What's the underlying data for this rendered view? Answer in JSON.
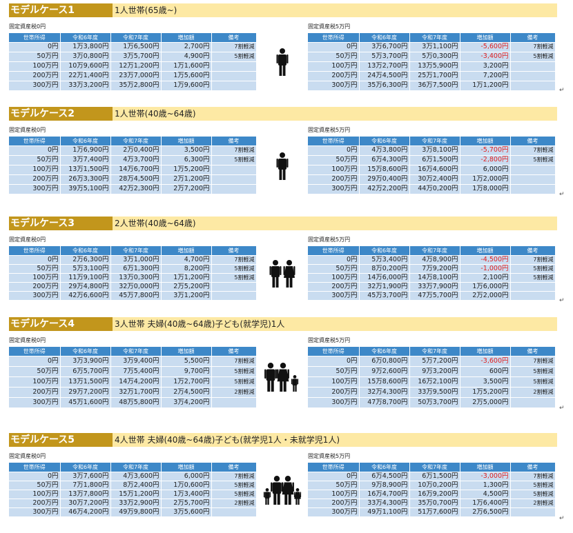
{
  "columns": [
    "世帯所得",
    "令和6年度",
    "令和7年度",
    "増加額",
    "備考"
  ],
  "tax0_label": "固定資産税0円",
  "tax5_label": "固定資産税5万円",
  "return_mark": "↵",
  "colors": {
    "header_gold": "#c2961c",
    "header_light": "#fde9a4",
    "table_header": "#3d88c8",
    "cell": "#c9dcf0",
    "negative": "#e02020"
  },
  "cases": [
    {
      "title": "モデルケース1",
      "desc": "1人世帯(65歳~)",
      "icon": "single-person-icon",
      "left": [
        [
          "0円",
          "1万3,800円",
          "1万6,500円",
          "2,700円",
          "7割軽減"
        ],
        [
          "50万円",
          "3万0,800円",
          "3万5,700円",
          "4,900円",
          "5割軽減"
        ],
        [
          "100万円",
          "10万9,600円",
          "12万1,200円",
          "1万1,600円",
          ""
        ],
        [
          "200万円",
          "22万1,400円",
          "23万7,000円",
          "1万5,600円",
          ""
        ],
        [
          "300万円",
          "33万3,200円",
          "35万2,800円",
          "1万9,600円",
          ""
        ]
      ],
      "right": [
        [
          "0円",
          "3万6,700円",
          "3万1,100円",
          "-5,600円",
          "7割軽減"
        ],
        [
          "50万円",
          "5万3,700円",
          "5万0,300円",
          "-3,400円",
          "5割軽減"
        ],
        [
          "100万円",
          "13万2,700円",
          "13万5,900円",
          "3,200円",
          ""
        ],
        [
          "200万円",
          "24万4,500円",
          "25万1,700円",
          "7,200円",
          ""
        ],
        [
          "300万円",
          "35万6,300円",
          "36万7,500円",
          "1万1,200円",
          ""
        ]
      ]
    },
    {
      "title": "モデルケース2",
      "desc": "1人世帯(40歳~64歳)",
      "icon": "single-person-icon",
      "left": [
        [
          "0円",
          "1万6,900円",
          "2万0,400円",
          "3,500円",
          "7割軽減"
        ],
        [
          "50万円",
          "3万7,400円",
          "4万3,700円",
          "6,300円",
          "5割軽減"
        ],
        [
          "100万円",
          "13万1,500円",
          "14万6,700円",
          "1万5,200円",
          ""
        ],
        [
          "200万円",
          "26万3,300円",
          "28万4,500円",
          "2万1,200円",
          ""
        ],
        [
          "300万円",
          "39万5,100円",
          "42万2,300円",
          "2万7,200円",
          ""
        ]
      ],
      "right": [
        [
          "0円",
          "4万3,800円",
          "3万8,100円",
          "-5,700円",
          "7割軽減"
        ],
        [
          "50万円",
          "6万4,300円",
          "6万1,500円",
          "-2,800円",
          "5割軽減"
        ],
        [
          "100万円",
          "15万8,600円",
          "16万4,600円",
          "6,000円",
          ""
        ],
        [
          "200万円",
          "29万0,400円",
          "30万2,400円",
          "1万2,000円",
          ""
        ],
        [
          "300万円",
          "42万2,200円",
          "44万0,200円",
          "1万8,000円",
          ""
        ]
      ]
    },
    {
      "title": "モデルケース3",
      "desc": "2人世帯(40歳~64歳)",
      "icon": "couple-icon",
      "left": [
        [
          "0円",
          "2万6,300円",
          "3万1,000円",
          "4,700円",
          "7割軽減"
        ],
        [
          "50万円",
          "5万3,100円",
          "6万1,300円",
          "8,200円",
          "5割軽減"
        ],
        [
          "100万円",
          "11万9,100円",
          "13万0,300円",
          "1万1,200円",
          "5割軽減"
        ],
        [
          "200万円",
          "29万4,800円",
          "32万0,000円",
          "2万5,200円",
          ""
        ],
        [
          "300万円",
          "42万6,600円",
          "45万7,800円",
          "3万1,200円",
          ""
        ]
      ],
      "right": [
        [
          "0円",
          "5万3,400円",
          "4万8,900円",
          "-4,500円",
          "7割軽減"
        ],
        [
          "50万円",
          "8万0,200円",
          "7万9,200円",
          "-1,000円",
          "5割軽減"
        ],
        [
          "100万円",
          "14万6,000円",
          "14万8,100円",
          "2,100円",
          "5割軽減"
        ],
        [
          "200万円",
          "32万1,900円",
          "33万7,900円",
          "1万6,000円",
          ""
        ],
        [
          "300万円",
          "45万3,700円",
          "47万5,700円",
          "2万2,000円",
          ""
        ]
      ]
    },
    {
      "title": "モデルケース4",
      "desc": "3人世帯 夫婦(40歳~64歳)子ども(就学児)1人",
      "icon": "family-three-icon",
      "left": [
        [
          "0円",
          "3万3,900円",
          "3万9,400円",
          "5,500円",
          "7割軽減"
        ],
        [
          "50万円",
          "6万5,700円",
          "7万5,400円",
          "9,700円",
          "5割軽減"
        ],
        [
          "100万円",
          "13万1,500円",
          "14万4,200円",
          "1万2,700円",
          "5割軽減"
        ],
        [
          "200万円",
          "29万7,200円",
          "32万1,700円",
          "2万4,500円",
          "2割軽減"
        ],
        [
          "300万円",
          "45万1,600円",
          "48万5,800円",
          "3万4,200円",
          ""
        ]
      ],
      "right": [
        [
          "0円",
          "6万0,800円",
          "5万7,200円",
          "-3,600円",
          "7割軽減"
        ],
        [
          "50万円",
          "9万2,600円",
          "9万3,200円",
          "600円",
          "5割軽減"
        ],
        [
          "100万円",
          "15万8,600円",
          "16万2,100円",
          "3,500円",
          "5割軽減"
        ],
        [
          "200万円",
          "32万4,300円",
          "33万9,500円",
          "1万5,200円",
          "2割軽減"
        ],
        [
          "300万円",
          "47万8,700円",
          "50万3,700円",
          "2万5,000円",
          ""
        ]
      ]
    },
    {
      "title": "モデルケース5",
      "desc": "4人世帯 夫婦(40歳~64歳)子ども(就学児1人・未就学児1人)",
      "icon": "family-four-icon",
      "left": [
        [
          "0円",
          "3万7,600円",
          "4万3,600円",
          "6,000円",
          "7割軽減"
        ],
        [
          "50万円",
          "7万1,800円",
          "8万2,400円",
          "1万0,600円",
          "5割軽減"
        ],
        [
          "100万円",
          "13万7,800円",
          "15万1,200円",
          "1万3,400円",
          "5割軽減"
        ],
        [
          "200万円",
          "30万7,200円",
          "33万2,900円",
          "2万5,700円",
          "2割軽減"
        ],
        [
          "300万円",
          "46万4,200円",
          "49万9,800円",
          "3万5,600円",
          ""
        ]
      ],
      "right": [
        [
          "0円",
          "6万4,500円",
          "6万1,500円",
          "-3,000円",
          "7割軽減"
        ],
        [
          "50万円",
          "9万8,900円",
          "10万0,200円",
          "1,300円",
          "5割軽減"
        ],
        [
          "100万円",
          "16万4,700円",
          "16万9,200円",
          "4,500円",
          "5割軽減"
        ],
        [
          "200万円",
          "33万4,300円",
          "35万0,700円",
          "1万6,400円",
          "2割軽減"
        ],
        [
          "300万円",
          "49万1,100円",
          "51万7,600円",
          "2万6,500円",
          ""
        ]
      ]
    }
  ]
}
